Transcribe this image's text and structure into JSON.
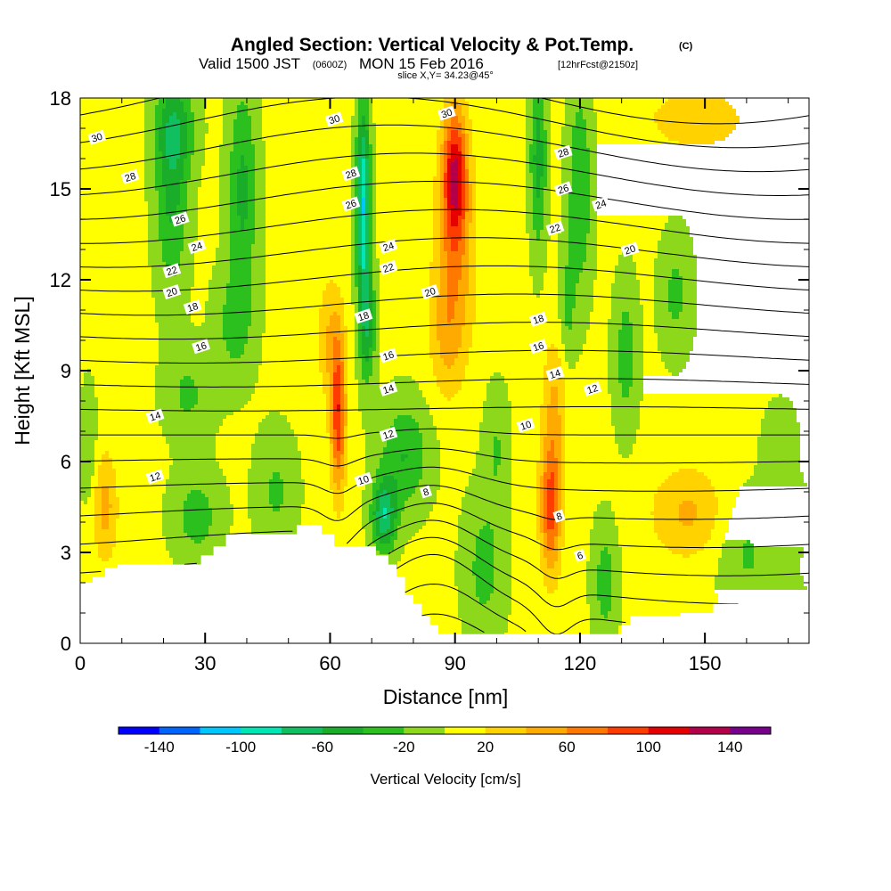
{
  "title": {
    "main": "Angled Section: Vertical Velocity & Pot.Temp.",
    "units": "(C)",
    "valid_prefix": "Valid 1500 JST",
    "valid_utc": "(0600Z)",
    "valid_date": "MON 15 Feb 2016",
    "forecast": "[12hrFcst@2150z]",
    "slice": "slice X,Y= 34.23@45°"
  },
  "chart_data": {
    "type": "heatmap",
    "xlabel": "Distance [nm]",
    "ylabel": "Height [Kft MSL]",
    "xlim": [
      0,
      175
    ],
    "ylim": [
      0,
      18
    ],
    "x_ticks": [
      0,
      30,
      60,
      90,
      120,
      150
    ],
    "y_ticks": [
      0,
      3,
      6,
      9,
      12,
      15,
      18
    ],
    "colorbar": {
      "label": "Vertical Velocity [cm/s]",
      "ticks": [
        "-140",
        "-100",
        "-60",
        "-20",
        "20",
        "60",
        "100",
        "140"
      ],
      "bins": [
        -160,
        -140,
        -120,
        -100,
        -80,
        -60,
        -40,
        -20,
        0,
        20,
        40,
        60,
        80,
        100,
        120,
        140,
        160
      ],
      "colors": [
        "#0000ff",
        "#0064ff",
        "#00c8ff",
        "#00e6b4",
        "#10c060",
        "#1aad2a",
        "#2cc01e",
        "#8ed81c",
        "#ffff00",
        "#ffd200",
        "#ffaa00",
        "#ff7800",
        "#ff3c00",
        "#e60000",
        "#b4004b",
        "#78008c"
      ]
    },
    "background_w": 5,
    "terrain": [
      [
        0,
        2
      ],
      [
        3,
        2
      ],
      [
        3,
        2.2
      ],
      [
        6,
        2.2
      ],
      [
        6,
        2.5
      ],
      [
        9,
        2.5
      ],
      [
        9,
        2.6
      ],
      [
        29,
        2.6
      ],
      [
        29,
        2.9
      ],
      [
        32,
        2.9
      ],
      [
        32,
        3.2
      ],
      [
        35,
        3.2
      ],
      [
        35,
        3.6
      ],
      [
        52,
        3.6
      ],
      [
        52,
        3.9
      ],
      [
        58,
        3.9
      ],
      [
        58,
        3.6
      ],
      [
        61,
        3.6
      ],
      [
        61,
        3.2
      ],
      [
        71,
        3.2
      ],
      [
        71,
        2.9
      ],
      [
        74,
        2.9
      ],
      [
        74,
        2.6
      ],
      [
        76,
        2.6
      ],
      [
        76,
        2.2
      ],
      [
        78,
        2.2
      ],
      [
        78,
        1.6
      ],
      [
        80,
        1.6
      ],
      [
        80,
        1.3
      ],
      [
        82,
        1.3
      ],
      [
        82,
        0.9
      ],
      [
        84,
        0.9
      ],
      [
        84,
        0.6
      ],
      [
        86,
        0.6
      ],
      [
        86,
        0.3
      ],
      [
        130,
        0.3
      ],
      [
        130,
        0.6
      ],
      [
        132,
        0.6
      ],
      [
        132,
        0.9
      ],
      [
        144,
        0.9
      ],
      [
        144,
        1.0
      ],
      [
        152,
        1.0
      ],
      [
        152,
        1.3
      ],
      [
        159,
        1.3
      ],
      [
        159,
        1.6
      ],
      [
        175,
        1.6
      ]
    ],
    "w_blobs": [
      {
        "x": 90,
        "y": 15.5,
        "sx": 3,
        "sy": 2.2,
        "w": 110
      },
      {
        "x": 90,
        "y": 12.5,
        "sx": 5,
        "sy": 3,
        "w": 45
      },
      {
        "x": 88,
        "y": 10,
        "sx": 4,
        "sy": 2,
        "w": 30
      },
      {
        "x": 62,
        "y": 7.5,
        "sx": 1.8,
        "sy": 2.5,
        "w": 90
      },
      {
        "x": 60,
        "y": 10,
        "sx": 3,
        "sy": 2,
        "w": 35
      },
      {
        "x": 113,
        "y": 4.5,
        "sx": 2.5,
        "sy": 2.2,
        "w": 85
      },
      {
        "x": 114,
        "y": 8,
        "sx": 3,
        "sy": 2.2,
        "w": 35
      },
      {
        "x": 6,
        "y": 4.5,
        "sx": 3,
        "sy": 1.8,
        "w": 42
      },
      {
        "x": 146,
        "y": 4.3,
        "sx": 9,
        "sy": 1.5,
        "w": 38
      },
      {
        "x": 148,
        "y": 17.3,
        "sx": 14,
        "sy": 1.2,
        "w": 25
      },
      {
        "x": 167,
        "y": 10.5,
        "sx": 5,
        "sy": 1.5,
        "w": 15
      },
      {
        "x": 68,
        "y": 14.5,
        "sx": 1.7,
        "sy": 3.2,
        "w": -105
      },
      {
        "x": 69,
        "y": 10.5,
        "sx": 2,
        "sy": 2,
        "w": -55
      },
      {
        "x": 73,
        "y": 4.2,
        "sx": 3,
        "sy": 1.2,
        "w": -80
      },
      {
        "x": 78,
        "y": 6.2,
        "sx": 6,
        "sy": 1.8,
        "w": -45
      },
      {
        "x": 22,
        "y": 15,
        "sx": 4,
        "sy": 3.5,
        "w": -50
      },
      {
        "x": 23,
        "y": 17,
        "sx": 5,
        "sy": 1.5,
        "w": -40
      },
      {
        "x": 39,
        "y": 15,
        "sx": 3.5,
        "sy": 3.5,
        "w": -50
      },
      {
        "x": 37,
        "y": 10.5,
        "sx": 5,
        "sy": 2,
        "w": -30
      },
      {
        "x": 26,
        "y": 8.2,
        "sx": 6,
        "sy": 1.5,
        "w": -28
      },
      {
        "x": 28,
        "y": 4.2,
        "sx": 6,
        "sy": 1.5,
        "w": -35
      },
      {
        "x": 47,
        "y": 5,
        "sx": 5,
        "sy": 2,
        "w": -28
      },
      {
        "x": 110,
        "y": 16,
        "sx": 2,
        "sy": 3,
        "w": -55
      },
      {
        "x": 120,
        "y": 15,
        "sx": 3,
        "sy": 3.5,
        "w": -45
      },
      {
        "x": 117,
        "y": 11,
        "sx": 2,
        "sy": 2,
        "w": -28
      },
      {
        "x": 131,
        "y": 9.5,
        "sx": 3,
        "sy": 2.5,
        "w": -35
      },
      {
        "x": 143,
        "y": 11.5,
        "sx": 4,
        "sy": 2,
        "w": -30
      },
      {
        "x": 97,
        "y": 2.5,
        "sx": 5,
        "sy": 2.5,
        "w": -32
      },
      {
        "x": 126,
        "y": 2,
        "sx": 3,
        "sy": 2,
        "w": -35
      },
      {
        "x": 160,
        "y": 3,
        "sx": 7,
        "sy": 2,
        "w": -28
      },
      {
        "x": 168,
        "y": 6.5,
        "sx": 4,
        "sy": 1.5,
        "w": -22
      },
      {
        "x": 2,
        "y": 6.5,
        "sx": 2,
        "sy": 2,
        "w": -25
      },
      {
        "x": 100,
        "y": 6.5,
        "sx": 3,
        "sy": 2,
        "w": -25
      },
      {
        "x": 175,
        "y": 2.5,
        "sx": 5,
        "sy": 2,
        "w": -28
      }
    ],
    "theta_contours": {
      "levels": [
        6,
        7,
        8,
        9,
        10,
        11,
        12,
        13,
        14,
        15,
        16,
        17,
        18,
        19,
        20,
        21,
        22,
        23,
        24,
        25,
        26,
        27,
        28,
        29,
        30,
        31
      ],
      "base_height": -8.6,
      "slope_kft_per_deg": 0.86
    },
    "contour_labels": [
      {
        "text": "30",
        "x": 4,
        "y": 16.7
      },
      {
        "text": "28",
        "x": 12,
        "y": 15.4
      },
      {
        "text": "26",
        "x": 24,
        "y": 14.0
      },
      {
        "text": "24",
        "x": 28,
        "y": 13.1
      },
      {
        "text": "22",
        "x": 22,
        "y": 12.3
      },
      {
        "text": "20",
        "x": 22,
        "y": 11.6
      },
      {
        "text": "18",
        "x": 27,
        "y": 11.1
      },
      {
        "text": "16",
        "x": 29,
        "y": 9.8
      },
      {
        "text": "14",
        "x": 18,
        "y": 7.5
      },
      {
        "text": "12",
        "x": 18,
        "y": 5.5
      },
      {
        "text": "30",
        "x": 61,
        "y": 17.3
      },
      {
        "text": "28",
        "x": 65,
        "y": 15.5
      },
      {
        "text": "26",
        "x": 65,
        "y": 14.5
      },
      {
        "text": "18",
        "x": 68,
        "y": 10.8
      },
      {
        "text": "24",
        "x": 74,
        "y": 13.1
      },
      {
        "text": "22",
        "x": 74,
        "y": 12.4
      },
      {
        "text": "16",
        "x": 74,
        "y": 9.5
      },
      {
        "text": "14",
        "x": 74,
        "y": 8.4
      },
      {
        "text": "12",
        "x": 74,
        "y": 6.9
      },
      {
        "text": "10",
        "x": 68,
        "y": 5.4
      },
      {
        "text": "8",
        "x": 83,
        "y": 5.0
      },
      {
        "text": "30",
        "x": 88,
        "y": 17.5
      },
      {
        "text": "20",
        "x": 84,
        "y": 11.6
      },
      {
        "text": "28",
        "x": 116,
        "y": 16.2
      },
      {
        "text": "26",
        "x": 116,
        "y": 15.0
      },
      {
        "text": "24",
        "x": 125,
        "y": 14.5
      },
      {
        "text": "22",
        "x": 114,
        "y": 13.7
      },
      {
        "text": "20",
        "x": 132,
        "y": 13.0
      },
      {
        "text": "18",
        "x": 110,
        "y": 10.7
      },
      {
        "text": "16",
        "x": 110,
        "y": 9.8
      },
      {
        "text": "14",
        "x": 114,
        "y": 8.9
      },
      {
        "text": "12",
        "x": 123,
        "y": 8.4
      },
      {
        "text": "10",
        "x": 107,
        "y": 7.2
      },
      {
        "text": "8",
        "x": 115,
        "y": 4.2
      },
      {
        "text": "6",
        "x": 120,
        "y": 2.9
      }
    ]
  }
}
